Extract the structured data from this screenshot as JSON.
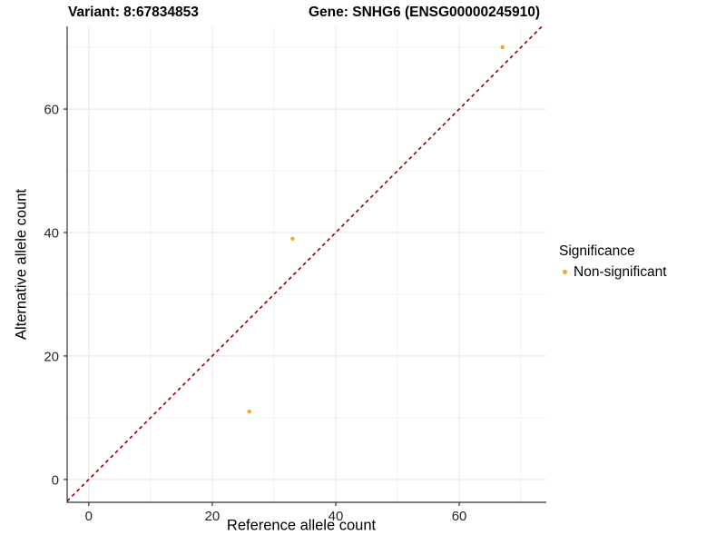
{
  "figure": {
    "background": "#FFFFFF",
    "axis_line_color": "#333333",
    "major_grid_color": "#E4E4E4",
    "minor_grid_color": "#F1F1F1"
  },
  "chart_data": {
    "type": "scatter",
    "title_left": "Variant: 8:67834853",
    "title_right": "Gene: SNHG6 (ENSG00000245910)",
    "xlabel": "Reference allele count",
    "ylabel": "Alternative allele count",
    "xlim": [
      -3.5,
      74.1
    ],
    "ylim": [
      -3.7,
      73.4
    ],
    "x_ticks": [
      0,
      20,
      40,
      60
    ],
    "y_ticks": [
      0,
      20,
      40,
      60
    ],
    "x_minor_gridlines": [
      10,
      30,
      50,
      70
    ],
    "y_minor_gridlines": [
      10,
      30,
      50,
      70
    ],
    "grid": "on",
    "series": [
      {
        "name": "Non-significant",
        "color": "#F9A232",
        "point_radius": 2.2,
        "points": [
          {
            "x": 26,
            "y": 11
          },
          {
            "x": 33,
            "y": 39
          },
          {
            "x": 67,
            "y": 70
          }
        ]
      }
    ],
    "reference_line": {
      "kind": "identity y=x",
      "style": "dashed",
      "color": "#8B0000"
    },
    "legend": {
      "title": "Significance",
      "position": "right",
      "entries": [
        {
          "label": "Non-significant",
          "color": "#F9A232"
        }
      ]
    }
  }
}
